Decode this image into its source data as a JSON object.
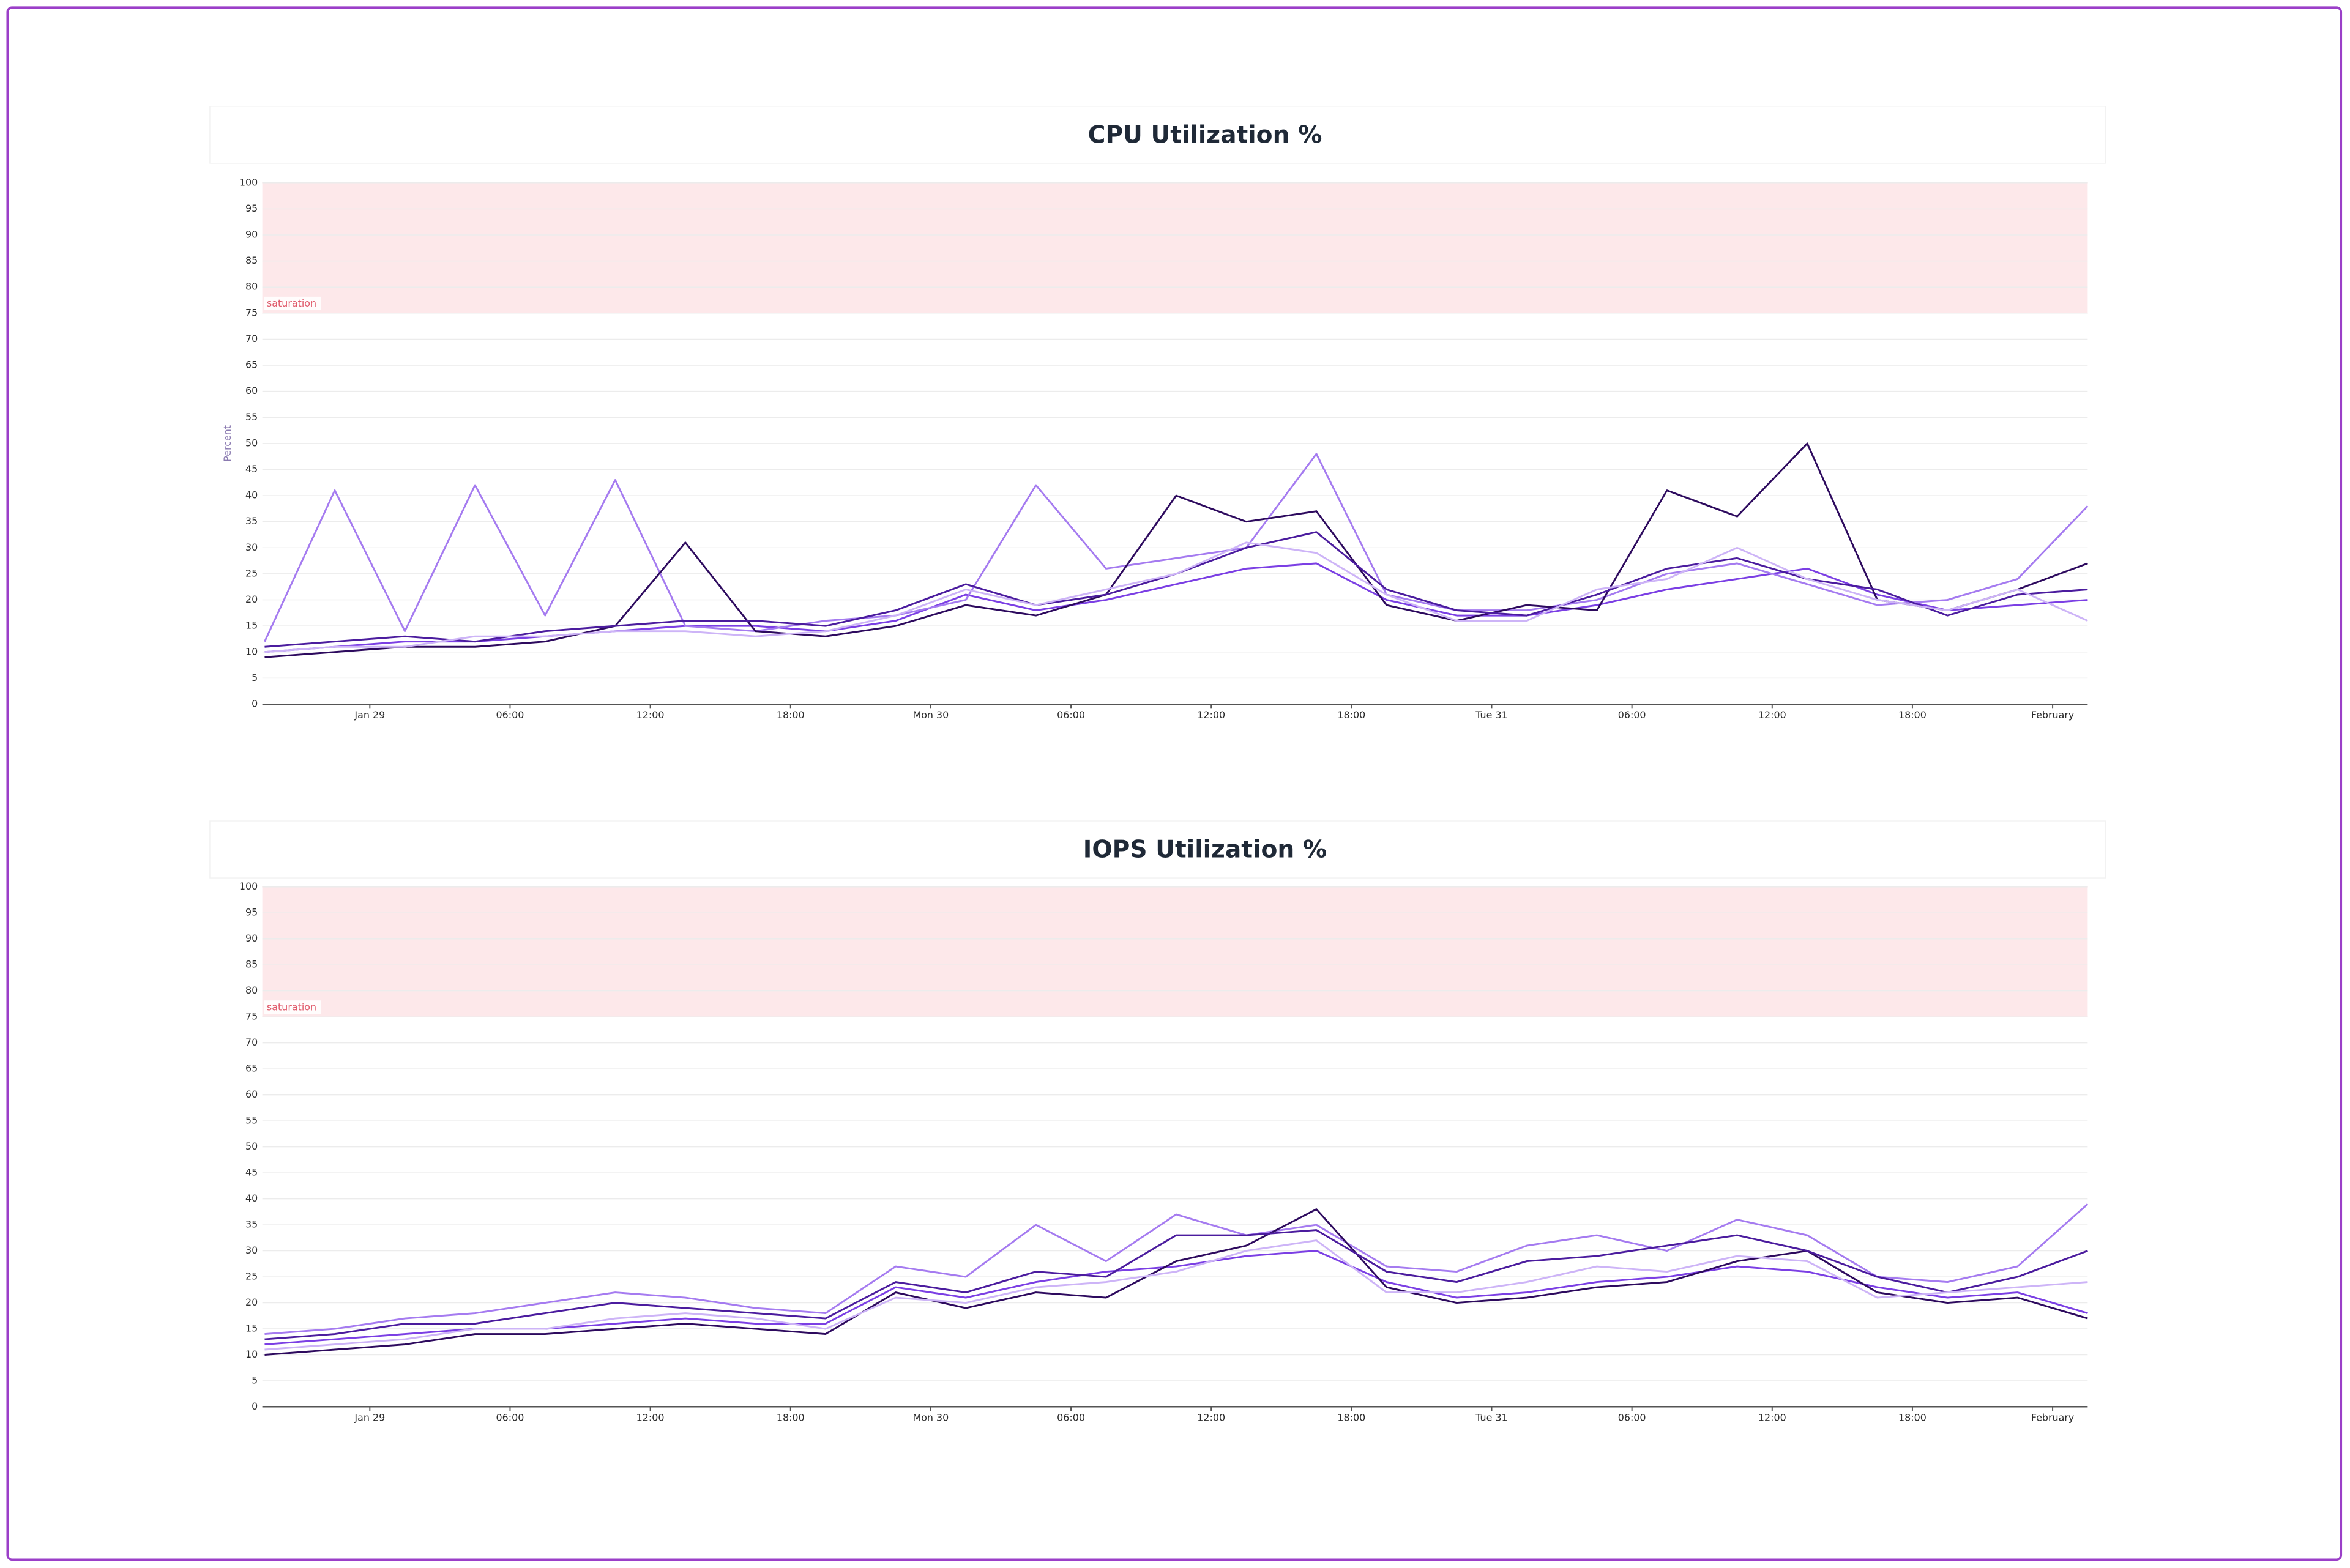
{
  "chart_data": [
    {
      "type": "line",
      "title": "CPU Utilization %",
      "y_label": "Percent",
      "x": [
        -4.5,
        -1.5,
        1.5,
        4.5,
        7.5,
        10.5,
        13.5,
        16.5,
        19.5,
        22.5,
        25.5,
        28.5,
        31.5,
        34.5,
        37.5,
        40.5,
        43.5,
        46.5,
        49.5,
        52.5,
        55.5,
        58.5,
        61.5,
        64.5,
        67.5,
        70.5,
        73.5
      ],
      "xlim": [
        -4.6,
        73.5
      ],
      "xticks": [
        {
          "value": 0,
          "label": "Jan 29"
        },
        {
          "value": 6,
          "label": "06:00"
        },
        {
          "value": 12,
          "label": "12:00"
        },
        {
          "value": 18,
          "label": "18:00"
        },
        {
          "value": 24,
          "label": "Mon 30"
        },
        {
          "value": 30,
          "label": "06:00"
        },
        {
          "value": 36,
          "label": "12:00"
        },
        {
          "value": 42,
          "label": "18:00"
        },
        {
          "value": 48,
          "label": "Tue 31"
        },
        {
          "value": 54,
          "label": "06:00"
        },
        {
          "value": 60,
          "label": "12:00"
        },
        {
          "value": 66,
          "label": "18:00"
        },
        {
          "value": 72,
          "label": "February"
        }
      ],
      "ylim": [
        0,
        100
      ],
      "yticks": [
        0,
        5,
        10,
        15,
        20,
        25,
        30,
        35,
        40,
        45,
        50,
        55,
        60,
        65,
        70,
        75,
        80,
        85,
        90,
        95,
        100
      ],
      "grid": true,
      "threshold": {
        "from": 75,
        "to": 100,
        "label": "saturation",
        "color": "#fde8ea"
      },
      "series": [
        {
          "color": "#7b3fe4",
          "values": [
            10,
            11,
            12,
            12,
            13,
            14,
            15,
            15,
            14,
            16,
            21,
            18,
            20,
            23,
            26,
            27,
            20,
            17,
            17,
            19,
            22,
            24,
            26,
            21,
            18,
            19,
            20
          ]
        },
        {
          "color": "#a57bf0",
          "values": [
            12,
            41,
            14,
            42,
            17,
            43,
            15,
            14,
            16,
            17,
            20,
            42,
            26,
            28,
            30,
            48,
            21,
            18,
            18,
            20,
            25,
            27,
            23,
            19,
            20,
            24,
            38
          ]
        },
        {
          "color": "#2d0a5e",
          "values": [
            9,
            10,
            11,
            11,
            12,
            15,
            31,
            14,
            13,
            15,
            19,
            17,
            21,
            40,
            35,
            37,
            19,
            16,
            19,
            18,
            41,
            36,
            50,
            20,
            18,
            22,
            27
          ]
        },
        {
          "color": "#4b1c9e",
          "values": [
            11,
            12,
            13,
            12,
            14,
            15,
            16,
            16,
            15,
            18,
            23,
            19,
            21,
            25,
            30,
            33,
            22,
            18,
            17,
            21,
            26,
            28,
            24,
            22,
            17,
            21,
            22
          ]
        },
        {
          "color": "#cdb4f7",
          "values": [
            10,
            11,
            11,
            13,
            13,
            14,
            14,
            13,
            14,
            17,
            22,
            19,
            22,
            25,
            31,
            29,
            21,
            16,
            16,
            22,
            24,
            30,
            24,
            20,
            18,
            22,
            16
          ]
        }
      ]
    },
    {
      "type": "line",
      "title": "IOPS Utilization %",
      "x": [
        -4.5,
        -1.5,
        1.5,
        4.5,
        7.5,
        10.5,
        13.5,
        16.5,
        19.5,
        22.5,
        25.5,
        28.5,
        31.5,
        34.5,
        37.5,
        40.5,
        43.5,
        46.5,
        49.5,
        52.5,
        55.5,
        58.5,
        61.5,
        64.5,
        67.5,
        70.5,
        73.5
      ],
      "xlim": [
        -4.6,
        73.5
      ],
      "xticks": [
        {
          "value": 0,
          "label": "Jan 29"
        },
        {
          "value": 6,
          "label": "06:00"
        },
        {
          "value": 12,
          "label": "12:00"
        },
        {
          "value": 18,
          "label": "18:00"
        },
        {
          "value": 24,
          "label": "Mon 30"
        },
        {
          "value": 30,
          "label": "06:00"
        },
        {
          "value": 36,
          "label": "12:00"
        },
        {
          "value": 42,
          "label": "18:00"
        },
        {
          "value": 48,
          "label": "Tue 31"
        },
        {
          "value": 54,
          "label": "06:00"
        },
        {
          "value": 60,
          "label": "12:00"
        },
        {
          "value": 66,
          "label": "18:00"
        },
        {
          "value": 72,
          "label": "February"
        }
      ],
      "ylim": [
        0,
        100
      ],
      "yticks": [
        0,
        5,
        10,
        15,
        20,
        25,
        30,
        35,
        40,
        45,
        50,
        55,
        60,
        65,
        70,
        75,
        80,
        85,
        90,
        95,
        100
      ],
      "grid": true,
      "threshold": {
        "from": 75,
        "to": 100,
        "label": "saturation",
        "color": "#fde8ea"
      },
      "series": [
        {
          "color": "#7b3fe4",
          "values": [
            12,
            13,
            14,
            15,
            15,
            16,
            17,
            16,
            16,
            23,
            21,
            24,
            26,
            27,
            29,
            30,
            24,
            21,
            22,
            24,
            25,
            27,
            26,
            23,
            21,
            22,
            18
          ]
        },
        {
          "color": "#a57bf0",
          "values": [
            14,
            15,
            17,
            18,
            20,
            22,
            21,
            19,
            18,
            27,
            25,
            35,
            28,
            37,
            33,
            35,
            27,
            26,
            31,
            33,
            30,
            36,
            33,
            25,
            24,
            27,
            39
          ]
        },
        {
          "color": "#2d0a5e",
          "values": [
            10,
            11,
            12,
            14,
            14,
            15,
            16,
            15,
            14,
            22,
            19,
            22,
            21,
            28,
            31,
            38,
            23,
            20,
            21,
            23,
            24,
            28,
            30,
            22,
            20,
            21,
            17
          ]
        },
        {
          "color": "#4b1c9e",
          "values": [
            13,
            14,
            16,
            16,
            18,
            20,
            19,
            18,
            17,
            24,
            22,
            26,
            25,
            33,
            33,
            34,
            26,
            24,
            28,
            29,
            31,
            33,
            30,
            25,
            22,
            25,
            30
          ]
        },
        {
          "color": "#cdb4f7",
          "values": [
            11,
            12,
            13,
            15,
            15,
            17,
            18,
            17,
            15,
            21,
            20,
            23,
            24,
            26,
            30,
            32,
            22,
            22,
            24,
            27,
            26,
            29,
            28,
            21,
            22,
            23,
            24
          ]
        }
      ]
    }
  ]
}
